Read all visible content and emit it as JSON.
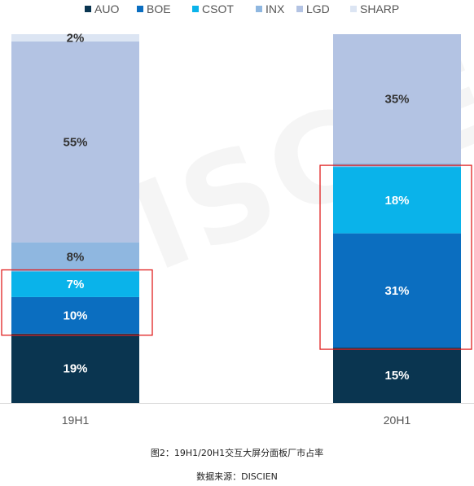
{
  "chart_data": {
    "type": "bar",
    "stacked": true,
    "percent": true,
    "categories": [
      "19H1",
      "20H1"
    ],
    "series": [
      {
        "name": "AUO",
        "color": "#0a3550",
        "values": [
          19,
          15
        ]
      },
      {
        "name": "BOE",
        "color": "#0b6ec0",
        "values": [
          10,
          31
        ]
      },
      {
        "name": "CSOT",
        "color": "#0ab3ea",
        "values": [
          7,
          18
        ]
      },
      {
        "name": "INX",
        "color": "#8fb7e0",
        "values": [
          8,
          1
        ]
      },
      {
        "name": "LGD",
        "color": "#b3c3e3",
        "values": [
          55,
          35
        ]
      },
      {
        "name": "SHARP",
        "color": "#dce5f3",
        "values": [
          2,
          0
        ]
      }
    ],
    "data_labels": [
      [
        "19%",
        "10%",
        "7%",
        "8%",
        "55%",
        "2%"
      ],
      [
        "15%",
        "31%",
        "18%",
        "",
        "35%",
        ""
      ]
    ],
    "ylim": [
      0,
      100
    ],
    "legend_position": "top",
    "highlight": [
      {
        "category": "19H1",
        "series": [
          "BOE",
          "CSOT"
        ]
      },
      {
        "category": "20H1",
        "series": [
          "BOE",
          "CSOT"
        ]
      }
    ],
    "highlight_color": "#e02020",
    "watermark": "DISCIEN"
  },
  "caption": {
    "figure": "图2：19H1/20H1交互大屏分面板厂市占率",
    "source": "数据来源：DISCIEN"
  }
}
